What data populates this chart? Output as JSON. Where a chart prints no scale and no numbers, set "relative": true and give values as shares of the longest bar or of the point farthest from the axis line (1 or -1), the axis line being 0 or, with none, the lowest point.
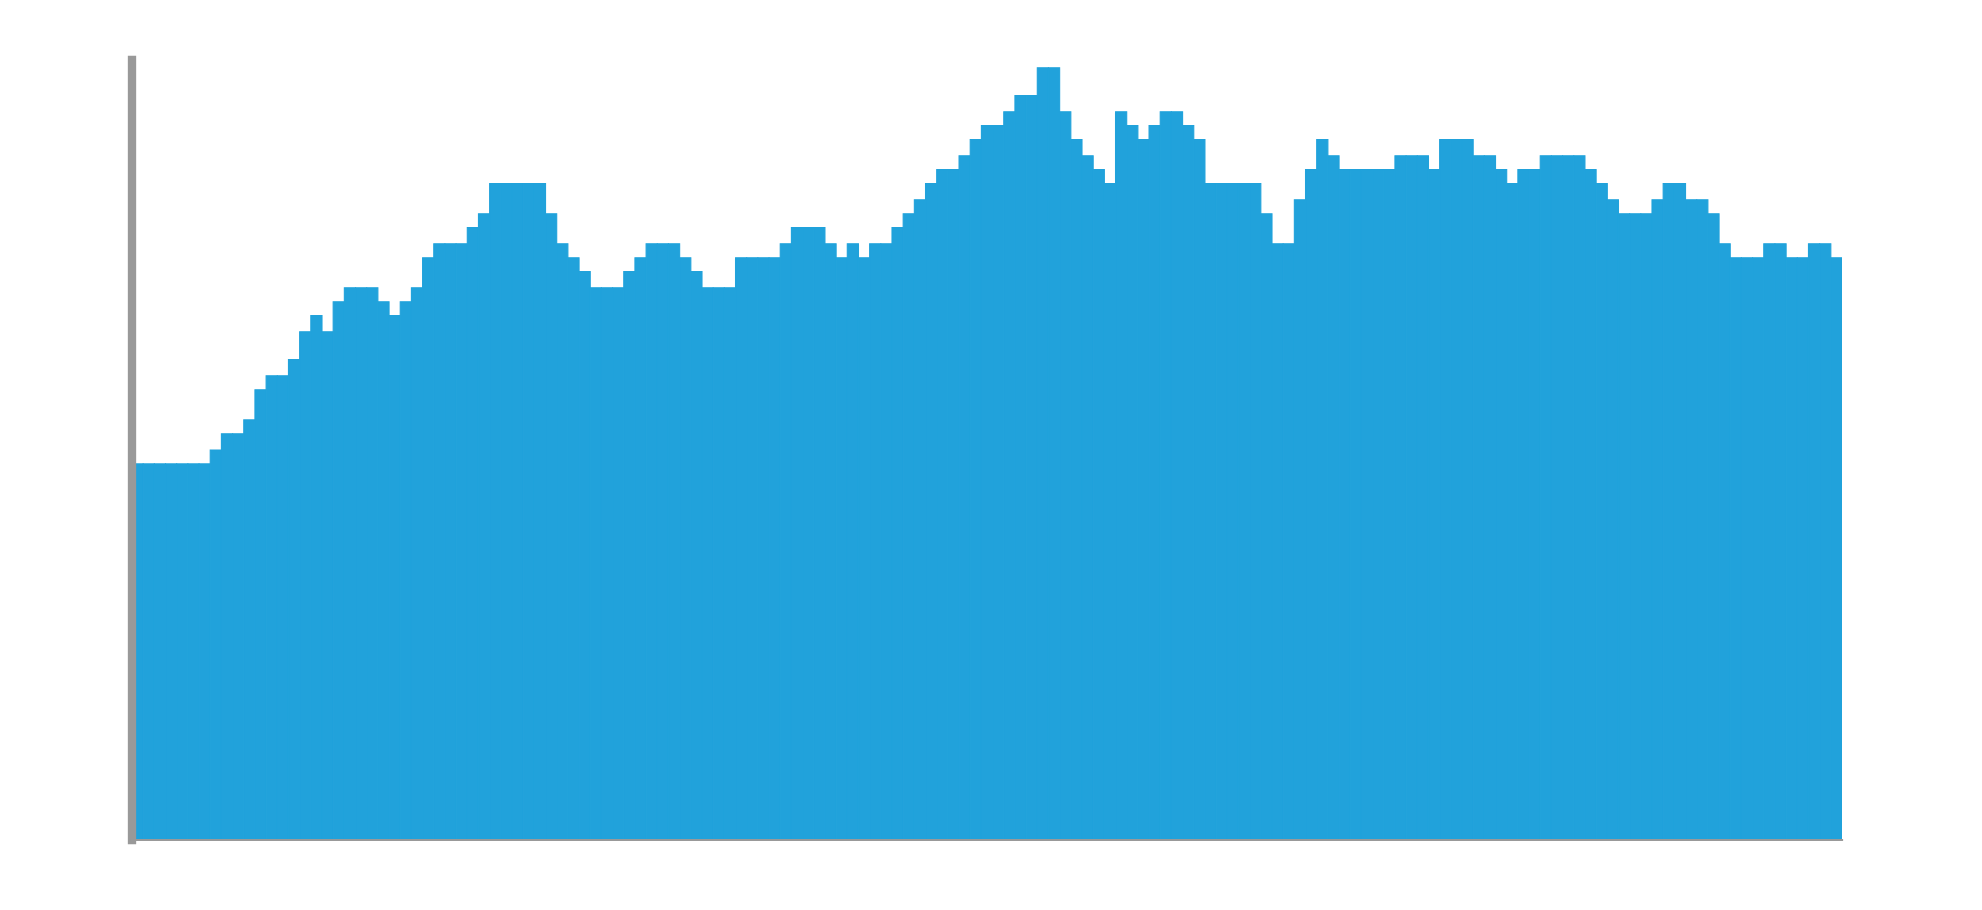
{
  "chart_data": {
    "type": "bar",
    "relative": true,
    "color": "#21a2db",
    "categories": [
      null,
      null,
      null,
      null,
      null,
      null,
      null,
      null,
      null,
      null,
      null,
      null,
      null,
      null,
      null,
      null,
      null,
      null,
      null,
      null,
      null,
      null,
      null,
      null,
      null,
      null,
      null,
      null,
      null,
      null,
      null,
      null,
      null,
      null,
      null,
      null,
      null,
      null,
      null,
      null,
      null,
      null,
      null,
      null,
      null,
      null,
      null,
      null,
      null,
      null,
      null,
      null,
      null,
      null,
      null,
      null,
      null,
      null,
      null,
      null,
      null,
      null,
      null,
      null,
      null,
      null,
      null,
      null,
      null,
      null,
      null,
      null,
      null,
      null,
      null,
      null,
      null,
      null,
      null,
      null,
      null,
      null,
      null,
      null,
      null,
      null,
      null,
      null,
      null,
      null,
      null,
      null,
      null,
      null,
      null,
      null,
      null,
      null,
      null,
      null,
      null,
      null,
      null,
      null,
      null,
      null,
      null,
      null,
      null,
      null,
      null,
      null,
      null,
      null,
      null,
      null,
      null,
      null,
      null,
      null,
      null,
      null,
      null,
      null,
      null,
      null,
      null,
      null,
      null,
      null,
      null,
      null,
      null,
      null,
      null,
      null,
      null,
      null,
      null,
      null,
      null,
      null,
      null,
      null,
      null,
      null,
      null,
      null,
      null,
      null,
      null,
      null,
      null
    ],
    "values": [
      0.487,
      0.487,
      0.487,
      0.487,
      0.487,
      0.487,
      0.487,
      0.505,
      0.526,
      0.526,
      0.544,
      0.583,
      0.601,
      0.601,
      0.622,
      0.658,
      0.679,
      0.658,
      0.697,
      0.715,
      0.715,
      0.715,
      0.697,
      0.679,
      0.697,
      0.715,
      0.754,
      0.772,
      0.772,
      0.772,
      0.793,
      0.811,
      0.85,
      0.85,
      0.85,
      0.85,
      0.85,
      0.811,
      0.772,
      0.754,
      0.736,
      0.715,
      0.715,
      0.715,
      0.736,
      0.754,
      0.772,
      0.772,
      0.772,
      0.754,
      0.736,
      0.715,
      0.715,
      0.715,
      0.754,
      0.754,
      0.754,
      0.754,
      0.772,
      0.793,
      0.793,
      0.793,
      0.772,
      0.754,
      0.772,
      0.754,
      0.772,
      0.772,
      0.793,
      0.811,
      0.829,
      0.85,
      0.868,
      0.868,
      0.886,
      0.907,
      0.925,
      0.925,
      0.943,
      0.964,
      0.964,
      1.0,
      1.0,
      0.943,
      0.907,
      0.886,
      0.868,
      0.85,
      0.943,
      0.925,
      0.907,
      0.925,
      0.943,
      0.943,
      0.925,
      0.907,
      0.85,
      0.85,
      0.85,
      0.85,
      0.85,
      0.811,
      0.772,
      0.772,
      0.829,
      0.868,
      0.907,
      0.886,
      0.868,
      0.868,
      0.868,
      0.868,
      0.868,
      0.886,
      0.886,
      0.886,
      0.868,
      0.907,
      0.907,
      0.907,
      0.886,
      0.886,
      0.868,
      0.85,
      0.868,
      0.868,
      0.886,
      0.886,
      0.886,
      0.886,
      0.868,
      0.85,
      0.829,
      0.811,
      0.811,
      0.811,
      0.829,
      0.85,
      0.85,
      0.829,
      0.829,
      0.811,
      0.772,
      0.754,
      0.754,
      0.754,
      0.772,
      0.772,
      0.754,
      0.754,
      0.772,
      0.772,
      0.754
    ]
  }
}
